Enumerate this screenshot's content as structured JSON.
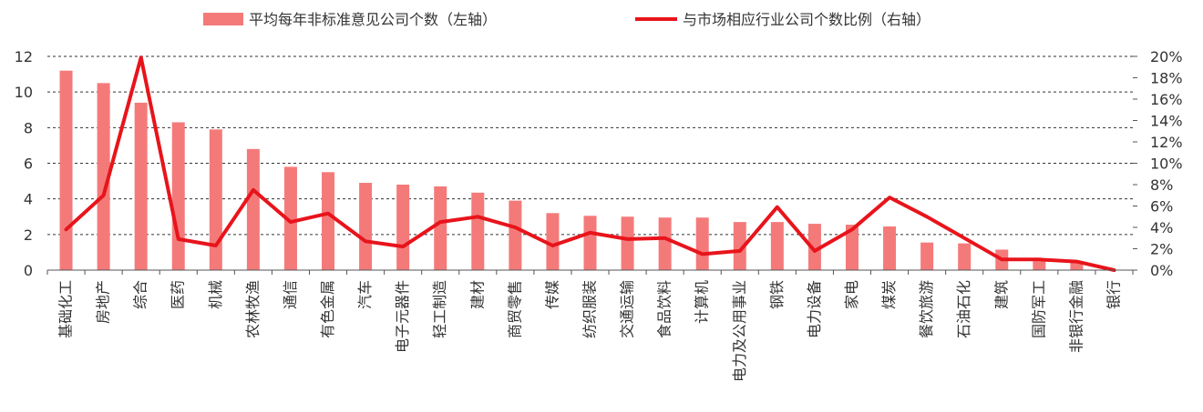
{
  "chart_data": {
    "type": "bar",
    "categories": [
      "基础化工",
      "房地产",
      "综合",
      "医药",
      "机械",
      "农林牧渔",
      "通信",
      "有色金属",
      "汽车",
      "电子元器件",
      "轻工制造",
      "建材",
      "商贸零售",
      "传媒",
      "纺织服装",
      "交通运输",
      "食品饮料",
      "计算机",
      "电力及公用事业",
      "钢铁",
      "电力设备",
      "家电",
      "煤炭",
      "餐饮旅游",
      "石油石化",
      "建筑",
      "国防军工",
      "非银行金融",
      "银行"
    ],
    "series": [
      {
        "name": "平均每年非标准意见公司个数（左轴）",
        "type": "bar",
        "axis": "left",
        "color": "#f47a7a",
        "values": [
          11.2,
          10.5,
          9.4,
          8.3,
          7.9,
          6.8,
          5.8,
          5.5,
          4.9,
          4.8,
          4.7,
          4.35,
          3.9,
          3.2,
          3.05,
          3.0,
          2.95,
          2.95,
          2.7,
          2.7,
          2.6,
          2.55,
          2.45,
          1.55,
          1.5,
          1.15,
          0.5,
          0.5,
          0.0
        ]
      },
      {
        "name": "与市场相应行业公司个数比例（右轴）",
        "type": "line",
        "axis": "right",
        "color": "#e8141b",
        "values": [
          3.8,
          7.0,
          19.9,
          2.9,
          2.3,
          7.5,
          4.5,
          5.3,
          2.7,
          2.2,
          4.5,
          5.0,
          4.0,
          2.3,
          3.5,
          2.9,
          3.0,
          1.5,
          1.8,
          5.9,
          1.8,
          3.8,
          6.8,
          5.0,
          3.0,
          1.0,
          1.0,
          0.8,
          0.0
        ]
      }
    ],
    "left_axis": {
      "min": 0,
      "max": 12,
      "ticks": [
        0,
        2,
        4,
        6,
        8,
        10,
        12
      ],
      "tick_labels": [
        "0",
        "2",
        "4",
        "6",
        "8",
        "10",
        "12"
      ]
    },
    "right_axis": {
      "min": 0,
      "max": 20,
      "ticks": [
        0,
        2,
        4,
        6,
        8,
        10,
        12,
        14,
        16,
        18,
        20
      ],
      "tick_labels": [
        "0%",
        "2%",
        "4%",
        "6%",
        "8%",
        "10%",
        "12%",
        "14%",
        "16%",
        "18%",
        "20%"
      ]
    },
    "grid": "dashed",
    "legend_position": "top"
  }
}
